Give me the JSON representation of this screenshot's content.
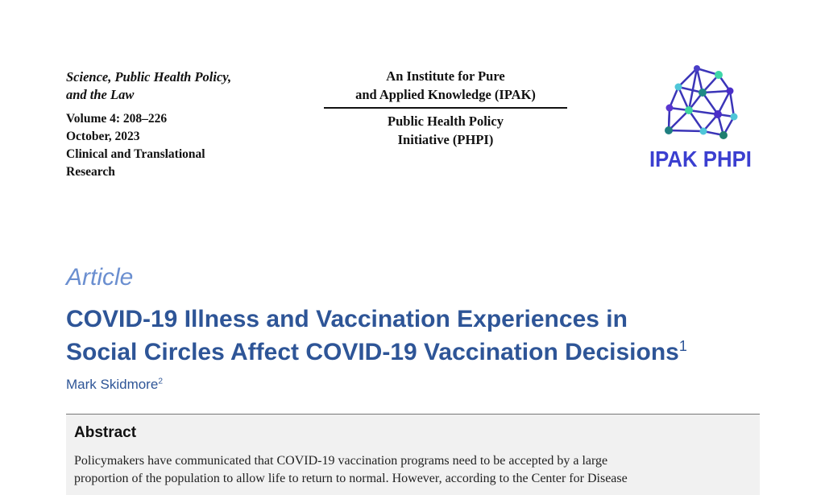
{
  "header": {
    "journal": [
      "Science, Public Health Policy,",
      "and the Law"
    ],
    "meta": [
      "Volume 4: 208–226",
      "October, 2023",
      "Clinical and Translational",
      "Research"
    ],
    "institute": [
      "An Institute for Pure",
      "and Applied Knowledge (IPAK)"
    ],
    "initiative": [
      "Public Health Policy",
      "Initiative (PHPI)"
    ],
    "logo_text": "IPAK PHPI"
  },
  "article": {
    "type": "Article",
    "title_line1": "COVID-19 Illness and Vaccination Experiences in",
    "title_line2": "Social Circles Affect COVID-19 Vaccination Decisions",
    "title_note": "1",
    "author": "Mark Skidmore",
    "author_note": "2"
  },
  "abstract": {
    "heading": "Abstract",
    "lines": [
      "Policymakers have communicated that COVID-19 vaccination programs need to be accepted by a large",
      "proportion of the population to allow life to return to normal. However, according to the Center for Disease"
    ]
  },
  "colors": {
    "title": "#2e5597",
    "article_label": "#6b8fd0",
    "logo": "#3b3fd0",
    "abstract_bg": "#f1f1f1"
  }
}
